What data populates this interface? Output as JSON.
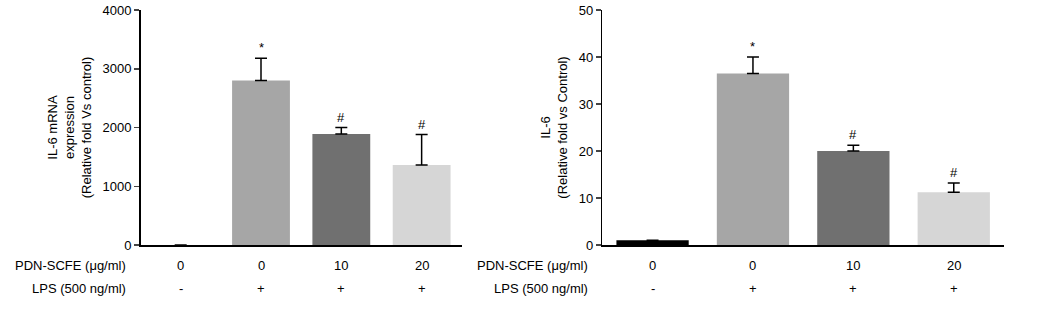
{
  "chart_data": [
    {
      "type": "bar",
      "y_label": "IL-6 mRNA\nexpression\n(Relative fold Vs control)",
      "categories": [
        "0",
        "0",
        "10",
        "20"
      ],
      "row_labels": [
        "PDN-SCFE (μg/ml)",
        "LPS (500 ng/ml)"
      ],
      "lps": [
        "-",
        "+",
        "+",
        "+"
      ],
      "values": [
        0,
        2800,
        1890,
        1360
      ],
      "errors": [
        0,
        380,
        110,
        520
      ],
      "colors": [
        "#000000",
        "#a6a6a6",
        "#707070",
        "#d6d6d6"
      ],
      "annotations": [
        {
          "text": "*",
          "index": 1
        },
        {
          "text": "#",
          "index": 2
        },
        {
          "text": "#",
          "index": 3
        }
      ],
      "ylim": [
        0,
        4000
      ],
      "yticks": [
        0,
        1000,
        2000,
        3000,
        4000
      ],
      "grid": false
    },
    {
      "type": "bar",
      "y_label": "IL-6\n(Relative fold vs Control)",
      "categories": [
        "0",
        "0",
        "10",
        "20"
      ],
      "row_labels": [
        "PDN-SCFE (μg/ml)",
        "LPS (500 ng/ml)"
      ],
      "lps": [
        "-",
        "+",
        "+",
        "+"
      ],
      "values": [
        1,
        36.5,
        20,
        11.2
      ],
      "errors": [
        0,
        3.5,
        1.2,
        2
      ],
      "colors": [
        "#000000",
        "#a6a6a6",
        "#707070",
        "#d6d6d6"
      ],
      "annotations": [
        {
          "text": "*",
          "index": 1
        },
        {
          "text": "#",
          "index": 2
        },
        {
          "text": "#",
          "index": 3
        }
      ],
      "ylim": [
        0,
        50
      ],
      "yticks": [
        0,
        10,
        20,
        30,
        40,
        50
      ],
      "grid": false
    }
  ]
}
